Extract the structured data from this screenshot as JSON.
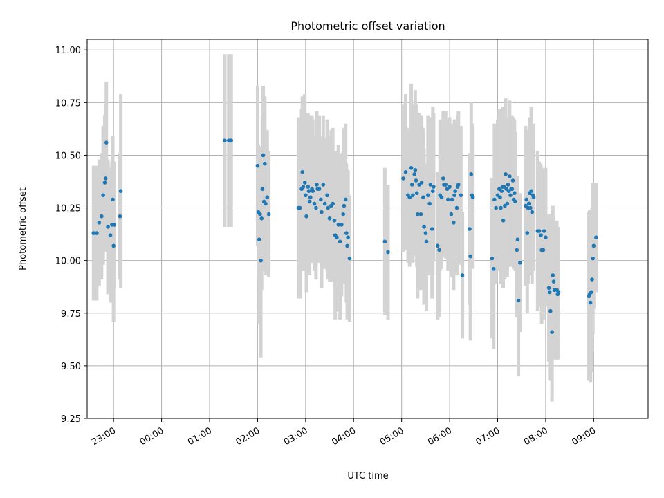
{
  "chart_data": {
    "type": "scatter",
    "title": "Photometric offset variation",
    "xlabel": "UTC time",
    "ylabel": "Photometric offset",
    "x_unit": "UTC (23:00 = 23.0, 09:00 = 33.0)",
    "xlim": [
      "22:27",
      "10:08"
    ],
    "ylim": [
      9.25,
      11.05
    ],
    "x_ticks": [
      "23:00",
      "00:00",
      "01:00",
      "02:00",
      "03:00",
      "04:00",
      "05:00",
      "06:00",
      "07:00",
      "08:00",
      "09:00"
    ],
    "y_ticks": [
      "9.25",
      "9.50",
      "9.75",
      "10.00",
      "10.25",
      "10.50",
      "10.75",
      "11.00"
    ],
    "grid": true,
    "point_color": "#1f77b4",
    "errorbar_color": "#d3d3d3",
    "points": [
      [
        "22:35",
        10.13,
        0.32
      ],
      [
        "22:39",
        10.13,
        0.32
      ],
      [
        "22:42",
        10.18,
        0.3
      ],
      [
        "22:45",
        10.21,
        0.3
      ],
      [
        "22:47",
        10.31,
        0.33
      ],
      [
        "22:49",
        10.37,
        0.32
      ],
      [
        "22:50",
        10.39,
        0.35
      ],
      [
        "22:51",
        10.56,
        0.29
      ],
      [
        "22:53",
        10.16,
        0.32
      ],
      [
        "22:56",
        10.12,
        0.32
      ],
      [
        "22:58",
        10.17,
        0.3
      ],
      [
        "22:59",
        10.29,
        0.3
      ],
      [
        "23:00",
        10.07,
        0.36
      ],
      [
        "23:01",
        10.17,
        0.3
      ],
      [
        "23:08",
        10.21,
        0.3
      ],
      [
        "23:09",
        10.33,
        0.46
      ],
      [
        "01:19",
        10.57,
        0.41
      ],
      [
        "01:24",
        10.57,
        0.41
      ],
      [
        "01:27",
        10.57,
        0.41
      ],
      [
        "02:00",
        10.45,
        0.38
      ],
      [
        "02:01",
        10.23,
        0.32
      ],
      [
        "02:02",
        10.1,
        0.4
      ],
      [
        "02:03",
        10.22,
        0.32
      ],
      [
        "02:04",
        10.0,
        0.46
      ],
      [
        "02:05",
        10.2,
        0.34
      ],
      [
        "02:06",
        10.34,
        0.35
      ],
      [
        "02:07",
        10.5,
        0.33
      ],
      [
        "02:08",
        10.28,
        0.33
      ],
      [
        "02:09",
        10.46,
        0.32
      ],
      [
        "02:10",
        10.27,
        0.34
      ],
      [
        "02:12",
        10.3,
        0.32
      ],
      [
        "02:14",
        10.22,
        0.3
      ],
      [
        "02:51",
        10.25,
        0.43
      ],
      [
        "02:53",
        10.25,
        0.43
      ],
      [
        "02:55",
        10.34,
        0.38
      ],
      [
        "02:56",
        10.42,
        0.36
      ],
      [
        "02:57",
        10.35,
        0.4
      ],
      [
        "02:59",
        10.37,
        0.42
      ],
      [
        "03:00",
        10.31,
        0.33
      ],
      [
        "03:01",
        10.21,
        0.36
      ],
      [
        "03:03",
        10.35,
        0.35
      ],
      [
        "03:04",
        10.33,
        0.36
      ],
      [
        "03:05",
        10.28,
        0.35
      ],
      [
        "03:06",
        10.3,
        0.31
      ],
      [
        "03:08",
        10.34,
        0.35
      ],
      [
        "03:09",
        10.33,
        0.34
      ],
      [
        "03:11",
        10.27,
        0.32
      ],
      [
        "03:13",
        10.25,
        0.34
      ],
      [
        "03:14",
        10.36,
        0.35
      ],
      [
        "03:15",
        10.34,
        0.35
      ],
      [
        "03:17",
        10.34,
        0.35
      ],
      [
        "03:19",
        10.29,
        0.3
      ],
      [
        "03:20",
        10.23,
        0.36
      ],
      [
        "03:22",
        10.36,
        0.33
      ],
      [
        "03:24",
        10.27,
        0.31
      ],
      [
        "03:27",
        10.31,
        0.36
      ],
      [
        "03:28",
        10.25,
        0.34
      ],
      [
        "03:30",
        10.2,
        0.3
      ],
      [
        "03:32",
        10.26,
        0.36
      ],
      [
        "03:34",
        10.27,
        0.36
      ],
      [
        "03:36",
        10.19,
        0.31
      ],
      [
        "03:37",
        10.12,
        0.4
      ],
      [
        "03:39",
        10.11,
        0.35
      ],
      [
        "03:41",
        10.17,
        0.38
      ],
      [
        "03:43",
        10.09,
        0.37
      ],
      [
        "03:45",
        10.17,
        0.34
      ],
      [
        "03:47",
        10.22,
        0.3
      ],
      [
        "03:48",
        10.26,
        0.37
      ],
      [
        "03:50",
        10.29,
        0.36
      ],
      [
        "03:51",
        10.13,
        0.33
      ],
      [
        "03:52",
        10.07,
        0.35
      ],
      [
        "03:53",
        10.11,
        0.32
      ],
      [
        "03:55",
        10.01,
        0.3
      ],
      [
        "04:39",
        10.09,
        0.35
      ],
      [
        "04:43",
        10.04,
        0.32
      ],
      [
        "05:02",
        10.39,
        0.35
      ],
      [
        "05:05",
        10.42,
        0.37
      ],
      [
        "05:08",
        10.31,
        0.32
      ],
      [
        "05:10",
        10.3,
        0.33
      ],
      [
        "05:12",
        10.44,
        0.4
      ],
      [
        "05:13",
        10.36,
        0.35
      ],
      [
        "05:14",
        10.31,
        0.32
      ],
      [
        "05:16",
        10.41,
        0.33
      ],
      [
        "05:17",
        10.43,
        0.38
      ],
      [
        "05:18",
        10.38,
        0.36
      ],
      [
        "05:19",
        10.32,
        0.35
      ],
      [
        "05:20",
        10.22,
        0.4
      ],
      [
        "05:22",
        10.36,
        0.34
      ],
      [
        "05:24",
        10.22,
        0.36
      ],
      [
        "05:25",
        10.37,
        0.32
      ],
      [
        "05:27",
        10.3,
        0.33
      ],
      [
        "05:28",
        10.16,
        0.37
      ],
      [
        "05:30",
        10.13,
        0.33
      ],
      [
        "05:31",
        10.09,
        0.33
      ],
      [
        "05:33",
        10.31,
        0.38
      ],
      [
        "05:35",
        10.27,
        0.33
      ],
      [
        "05:36",
        10.36,
        0.32
      ],
      [
        "05:38",
        10.15,
        0.33
      ],
      [
        "05:39",
        10.33,
        0.4
      ],
      [
        "05:40",
        10.35,
        0.35
      ],
      [
        "05:45",
        10.07,
        0.35
      ],
      [
        "05:47",
        10.05,
        0.32
      ],
      [
        "05:48",
        10.31,
        0.36
      ],
      [
        "05:50",
        10.3,
        0.34
      ],
      [
        "05:52",
        10.39,
        0.32
      ],
      [
        "05:53",
        10.36,
        0.34
      ],
      [
        "05:55",
        10.36,
        0.35
      ],
      [
        "05:57",
        10.34,
        0.33
      ],
      [
        "05:58",
        10.29,
        0.34
      ],
      [
        "06:00",
        10.35,
        0.33
      ],
      [
        "06:02",
        10.22,
        0.3
      ],
      [
        "06:03",
        10.29,
        0.36
      ],
      [
        "06:05",
        10.18,
        0.32
      ],
      [
        "06:06",
        10.31,
        0.36
      ],
      [
        "06:07",
        10.33,
        0.34
      ],
      [
        "06:09",
        10.25,
        0.32
      ],
      [
        "06:10",
        10.35,
        0.34
      ],
      [
        "06:11",
        10.36,
        0.35
      ],
      [
        "06:14",
        10.31,
        0.33
      ],
      [
        "06:16",
        9.93,
        0.3
      ],
      [
        "06:25",
        10.15,
        0.36
      ],
      [
        "06:26",
        10.02,
        0.4
      ],
      [
        "06:27",
        10.41,
        0.34
      ],
      [
        "06:28",
        10.31,
        0.34
      ],
      [
        "06:29",
        10.3,
        0.34
      ],
      [
        "06:53",
        10.01,
        0.38
      ],
      [
        "06:55",
        9.96,
        0.38
      ],
      [
        "06:56",
        10.29,
        0.36
      ],
      [
        "06:58",
        10.25,
        0.36
      ],
      [
        "07:00",
        10.31,
        0.36
      ],
      [
        "07:02",
        10.34,
        0.38
      ],
      [
        "07:03",
        10.3,
        0.33
      ],
      [
        "07:04",
        10.25,
        0.36
      ],
      [
        "07:05",
        10.33,
        0.33
      ],
      [
        "07:06",
        10.35,
        0.38
      ],
      [
        "07:07",
        10.19,
        0.32
      ],
      [
        "07:08",
        10.35,
        0.33
      ],
      [
        "07:09",
        10.26,
        0.35
      ],
      [
        "07:10",
        10.41,
        0.36
      ],
      [
        "07:11",
        10.34,
        0.33
      ],
      [
        "07:12",
        10.27,
        0.35
      ],
      [
        "07:13",
        10.36,
        0.32
      ],
      [
        "07:14",
        10.33,
        0.35
      ],
      [
        "07:15",
        10.4,
        0.36
      ],
      [
        "07:16",
        10.31,
        0.34
      ],
      [
        "07:17",
        10.34,
        0.35
      ],
      [
        "07:18",
        10.34,
        0.35
      ],
      [
        "07:19",
        10.38,
        0.3
      ],
      [
        "07:20",
        10.29,
        0.33
      ],
      [
        "07:21",
        10.32,
        0.35
      ],
      [
        "07:22",
        10.28,
        0.33
      ],
      [
        "07:24",
        10.05,
        0.32
      ],
      [
        "07:25",
        10.1,
        0.3
      ],
      [
        "07:26",
        9.81,
        0.36
      ],
      [
        "07:28",
        9.99,
        0.33
      ],
      [
        "07:35",
        10.26,
        0.38
      ],
      [
        "07:36",
        10.29,
        0.33
      ],
      [
        "07:37",
        10.13,
        0.38
      ],
      [
        "07:38",
        10.25,
        0.36
      ],
      [
        "07:39",
        10.27,
        0.33
      ],
      [
        "07:40",
        10.32,
        0.36
      ],
      [
        "07:41",
        10.25,
        0.32
      ],
      [
        "07:42",
        10.33,
        0.4
      ],
      [
        "07:43",
        10.23,
        0.34
      ],
      [
        "07:44",
        10.31,
        0.32
      ],
      [
        "07:45",
        10.3,
        0.35
      ],
      [
        "07:50",
        10.14,
        0.38
      ],
      [
        "07:52",
        10.14,
        0.33
      ],
      [
        "07:54",
        10.12,
        0.34
      ],
      [
        "07:55",
        10.05,
        0.35
      ],
      [
        "07:57",
        10.05,
        0.33
      ],
      [
        "07:58",
        10.14,
        0.3
      ],
      [
        "08:00",
        10.11,
        0.33
      ],
      [
        "08:04",
        9.87,
        0.35
      ],
      [
        "08:05",
        9.85,
        0.33
      ],
      [
        "08:06",
        9.76,
        0.33
      ],
      [
        "08:08",
        9.66,
        0.33
      ],
      [
        "08:09",
        9.93,
        0.33
      ],
      [
        "08:10",
        9.9,
        0.31
      ],
      [
        "08:11",
        9.86,
        0.33
      ],
      [
        "08:14",
        9.86,
        0.33
      ],
      [
        "08:15",
        9.84,
        0.31
      ],
      [
        "08:16",
        9.85,
        0.31
      ],
      [
        "08:54",
        9.83,
        0.4
      ],
      [
        "08:55",
        9.84,
        0.4
      ],
      [
        "08:56",
        9.8,
        0.38
      ],
      [
        "08:57",
        9.85,
        0.38
      ],
      [
        "08:58",
        9.91,
        0.34
      ],
      [
        "08:59",
        10.01,
        0.36
      ],
      [
        "09:00",
        10.07,
        0.3
      ],
      [
        "09:03",
        10.11,
        0.26
      ]
    ]
  }
}
